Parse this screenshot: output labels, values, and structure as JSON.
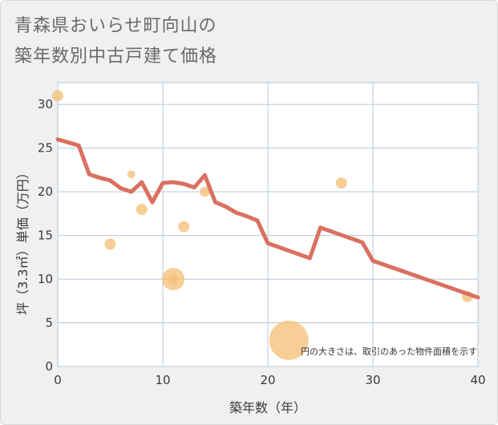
{
  "page": {
    "title_line1": "青森県おいらせ町向山の",
    "title_line2": "築年数別中古戸建て価格"
  },
  "chart_data": {
    "type": "scatter",
    "xlabel": "築年数（年）",
    "ylabel": "坪（3.3㎡）単価（万円）",
    "xlim": [
      0,
      40
    ],
    "ylim": [
      0,
      32.5
    ],
    "x_ticks": [
      0,
      10,
      20,
      30,
      40
    ],
    "y_ticks": [
      0,
      5,
      10,
      15,
      20,
      25,
      30
    ],
    "grid": true,
    "note": "円の大きさは、取引のあった物件面積を示す",
    "colors": {
      "line": "#d97060",
      "bubble": "#f5c27a",
      "grid": "#b8c8d8"
    },
    "scatter": [
      {
        "x": 0,
        "y": 31,
        "size": 1
      },
      {
        "x": 5,
        "y": 14,
        "size": 1
      },
      {
        "x": 7,
        "y": 22,
        "size": 0.7
      },
      {
        "x": 8,
        "y": 18,
        "size": 1
      },
      {
        "x": 11,
        "y": 10,
        "size": 2
      },
      {
        "x": 11,
        "y": 10,
        "size": 0.9
      },
      {
        "x": 12,
        "y": 16,
        "size": 1
      },
      {
        "x": 14,
        "y": 20,
        "size": 0.9
      },
      {
        "x": 22,
        "y": 3,
        "size": 3.5
      },
      {
        "x": 27,
        "y": 21,
        "size": 1
      },
      {
        "x": 39,
        "y": 8,
        "size": 1
      }
    ],
    "trend_line": {
      "x": [
        0,
        2,
        3,
        4,
        5,
        6,
        7,
        8,
        9,
        10,
        11,
        12,
        13,
        14,
        15,
        16,
        17,
        18,
        19,
        20,
        24,
        25,
        29,
        30,
        40
      ],
      "y": [
        26,
        25.3,
        22,
        21.6,
        21.3,
        20.4,
        20,
        21.1,
        18.8,
        21,
        21.1,
        20.9,
        20.5,
        21.9,
        18.8,
        18.3,
        17.6,
        17.2,
        16.7,
        14.1,
        12.4,
        15.9,
        14.2,
        12.1,
        7.9
      ]
    }
  }
}
